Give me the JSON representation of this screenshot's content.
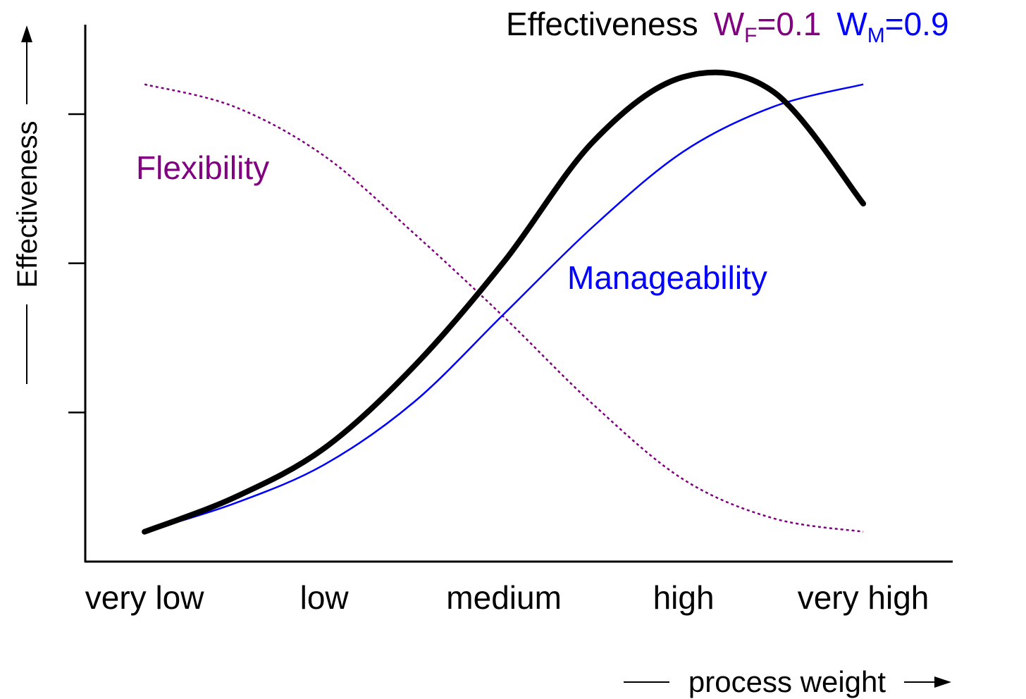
{
  "chart_data": {
    "type": "line",
    "title_parts": [
      {
        "text": "Effectiveness",
        "color": "#000000"
      },
      {
        "text": "W",
        "sub": "F",
        "rest": "=0.1",
        "color": "#800080"
      },
      {
        "text": "W",
        "sub": "M",
        "rest": "=0.9",
        "color": "#0000ff"
      }
    ],
    "y_label": "Effectiveness",
    "x_label": "process weight",
    "x": [
      0,
      0.5,
      1,
      1.5,
      2,
      2.5,
      3,
      3.5,
      4
    ],
    "xlim": [
      -0.33,
      4.49
    ],
    "xticks": [
      {
        "value": 0,
        "label": "very low"
      },
      {
        "value": 1,
        "label": "low"
      },
      {
        "value": 2,
        "label": "medium"
      },
      {
        "value": 3,
        "label": "high"
      },
      {
        "value": 4,
        "label": "very high"
      }
    ],
    "ylim": [
      0,
      3.6
    ],
    "yticks": [
      1,
      2,
      3
    ],
    "series": [
      {
        "name": "Flexibility",
        "color": "#800080",
        "style": "dotted",
        "values": [
          3.2,
          3.05,
          2.72,
          2.2,
          1.64,
          1.05,
          0.55,
          0.29,
          0.2
        ]
      },
      {
        "name": "Manageability",
        "color": "#0000ff",
        "style": "solid",
        "values": [
          0.2,
          0.39,
          0.65,
          1.07,
          1.66,
          2.25,
          2.75,
          3.05,
          3.2
        ]
      },
      {
        "name": "Effectiveness",
        "color": "#000000",
        "style": "thick",
        "values": [
          0.2,
          0.43,
          0.76,
          1.31,
          2.01,
          2.82,
          3.25,
          3.15,
          2.4
        ]
      }
    ]
  }
}
